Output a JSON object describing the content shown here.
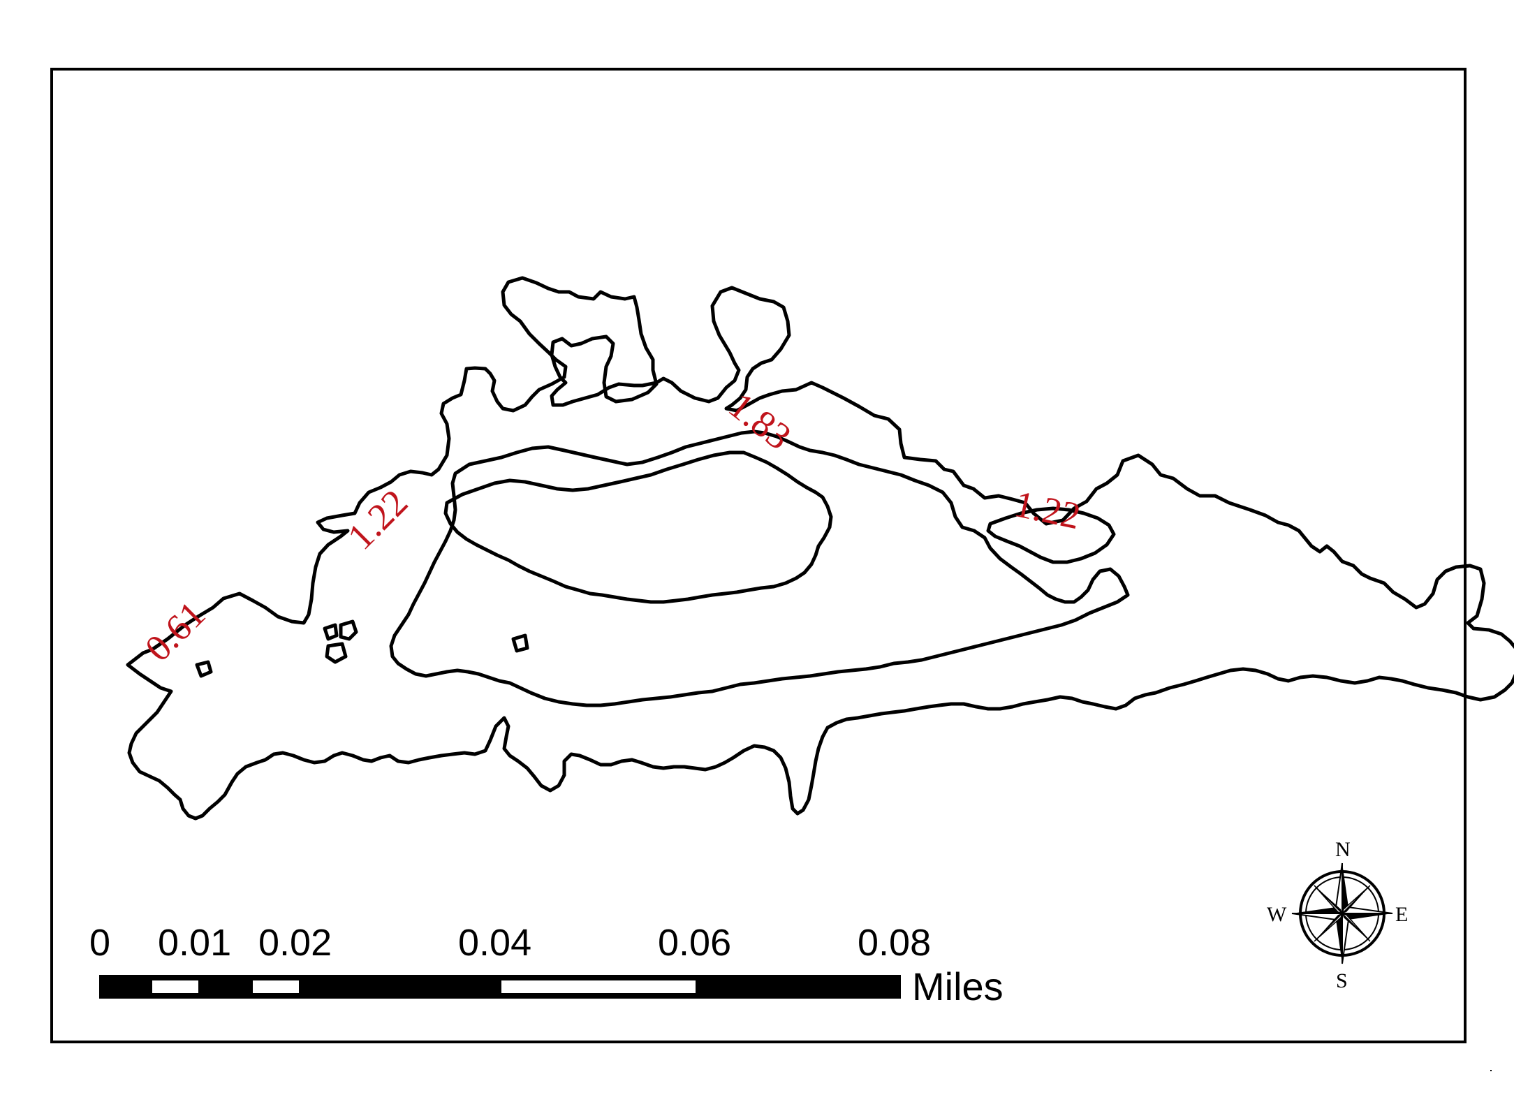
{
  "contour_labels": [
    {
      "text": "0.61"
    },
    {
      "text": "1.22"
    },
    {
      "text": "1.83"
    },
    {
      "text": "1.22"
    }
  ],
  "scale_bar": {
    "ticks": [
      "0",
      "0.01",
      "0.02",
      "0.04",
      "0.06",
      "0.08"
    ],
    "unit": "Miles"
  },
  "compass": {
    "n": "N",
    "s": "S",
    "e": "E",
    "w": "W"
  },
  "colors": {
    "contour_line": "#000000",
    "contour_label": "#c0141c"
  }
}
